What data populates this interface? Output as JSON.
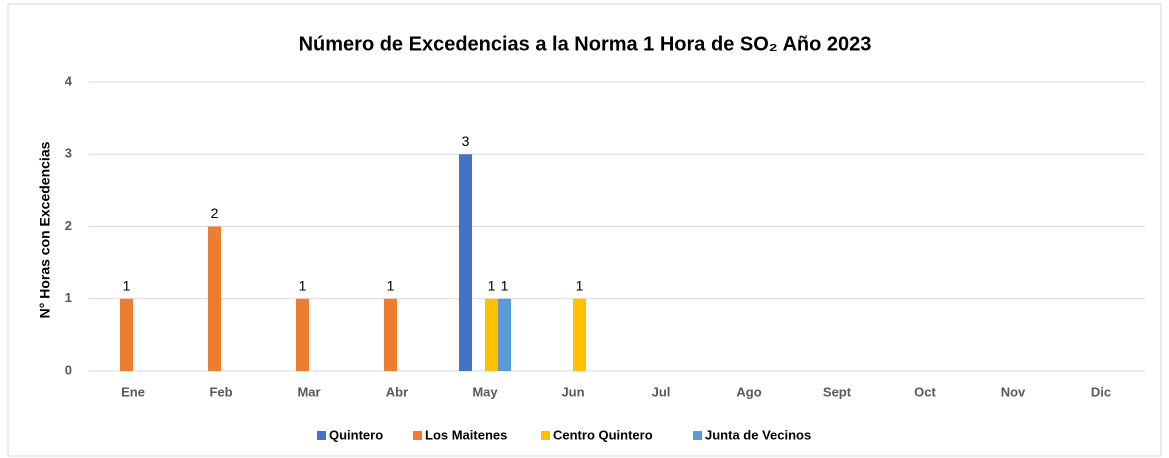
{
  "chart_data": {
    "type": "bar",
    "title": "Número de Excedencias a la Norma 1 Hora de SO₂ Año 2023",
    "y_label": "N° Horas con Excedencias",
    "categories": [
      "Ene",
      "Feb",
      "Mar",
      "Abr",
      "May",
      "Jun",
      "Jul",
      "Ago",
      "Sept",
      "Oct",
      "Nov",
      "Dic"
    ],
    "series": [
      {
        "name": "Quintero",
        "color": "#4472c4",
        "values": [
          null,
          null,
          null,
          null,
          3,
          null,
          null,
          null,
          null,
          null,
          null,
          null
        ]
      },
      {
        "name": "Los Maitenes",
        "color": "#ed7d31",
        "values": [
          1,
          2,
          1,
          1,
          null,
          null,
          null,
          null,
          null,
          null,
          null,
          null
        ]
      },
      {
        "name": "Centro Quintero",
        "color": "#ffc000",
        "values": [
          null,
          null,
          null,
          null,
          1,
          1,
          null,
          null,
          null,
          null,
          null,
          null
        ]
      },
      {
        "name": "Junta de Vecinos",
        "color": "#5b9bd5",
        "values": [
          null,
          null,
          null,
          null,
          1,
          null,
          null,
          null,
          null,
          null,
          null,
          null
        ]
      }
    ],
    "ylim": [
      0,
      4
    ],
    "yticks": [
      0,
      1,
      2,
      3,
      4
    ],
    "grid": true,
    "legend": "bottom"
  }
}
